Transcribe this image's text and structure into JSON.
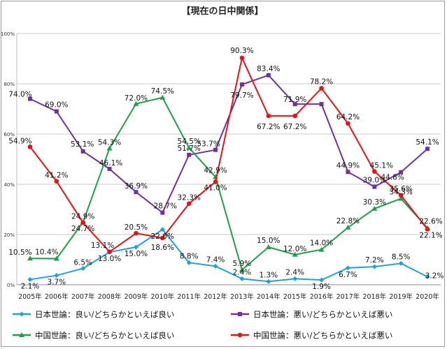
{
  "chart_data": {
    "type": "line",
    "title": "【現在の日中関係】",
    "categories": [
      "2005年",
      "2006年",
      "2007年",
      "2008年",
      "2009年",
      "2010年",
      "2011年",
      "2012年",
      "2013年",
      "2014年",
      "2015年",
      "2016年",
      "2017年",
      "2018年",
      "2019年",
      "2020年"
    ],
    "ylim": [
      0,
      100
    ],
    "yticks": [
      "0%",
      "20%",
      "40%",
      "60%",
      "80%",
      "100%"
    ],
    "grid": true,
    "legend_position": "bottom",
    "series": [
      {
        "name": "日本世論：良い/どちらかといえば良い",
        "color": "#1aa3e0",
        "values": [
          2.1,
          3.7,
          6.5,
          13.0,
          15.0,
          22.0,
          8.8,
          7.4,
          2.4,
          1.3,
          2.4,
          1.9,
          6.7,
          7.2,
          8.5,
          3.2
        ],
        "labels": [
          "2.1%",
          "3.7%",
          "6.5%",
          "13.0%",
          "15.0%",
          "22.0%",
          "8.8%",
          "7.4%",
          "2.4%",
          "1.3%",
          "2.4%",
          "1.9%",
          "6.7%",
          "7.2%",
          "8.5%",
          "3.2%"
        ]
      },
      {
        "name": "日本世論：悪い/どちらかといえば悪い",
        "color": "#7030a0",
        "values": [
          74.0,
          69.0,
          53.1,
          46.1,
          36.9,
          28.7,
          51.7,
          53.7,
          79.7,
          83.4,
          71.9,
          71.9,
          44.9,
          39.0,
          44.8,
          54.1
        ],
        "labels": [
          "74.0%",
          "69.0%",
          "53.1%",
          "46.1%",
          "36.9%",
          "28.7%",
          "51.7%",
          "53.7%",
          "79.7%",
          "83.4%",
          "71.9%",
          "",
          "44.9%",
          "39.0%",
          "44.8%",
          "54.1%"
        ]
      },
      {
        "name": "中国世論：良い/どちらかといえば良い",
        "color": "#1ca24a",
        "values": [
          10.5,
          10.4,
          24.9,
          54.3,
          72.0,
          74.5,
          54.5,
          42.9,
          5.9,
          15.0,
          12.0,
          14.0,
          22.8,
          30.3,
          34.3,
          22.6
        ],
        "labels": [
          "10.5%",
          "10.4%",
          "24.9%",
          "54.3%",
          "72.0%",
          "74.5%",
          "54.5%",
          "42.9%",
          "5.9%",
          "15.0%",
          "12.0%",
          "14.0%",
          "22.8%",
          "30.3%",
          "34.3%",
          "22.6%"
        ]
      },
      {
        "name": "中国世論：悪い/どちらかといえば悪い",
        "color": "#ee1111",
        "values": [
          54.9,
          41.2,
          24.7,
          13.1,
          20.5,
          18.6,
          32.3,
          41.0,
          90.3,
          67.2,
          67.2,
          78.2,
          64.2,
          45.1,
          35.6,
          22.1
        ],
        "labels": [
          "54.9%",
          "41.2%",
          "24.7%",
          "13.1%",
          "20.5%",
          "18.6%",
          "32.3%",
          "41.0%",
          "90.3%",
          "67.2%",
          "67.2%",
          "78.2%",
          "64.2%",
          "45.1%",
          "35.6%",
          "22.1%"
        ]
      }
    ]
  }
}
